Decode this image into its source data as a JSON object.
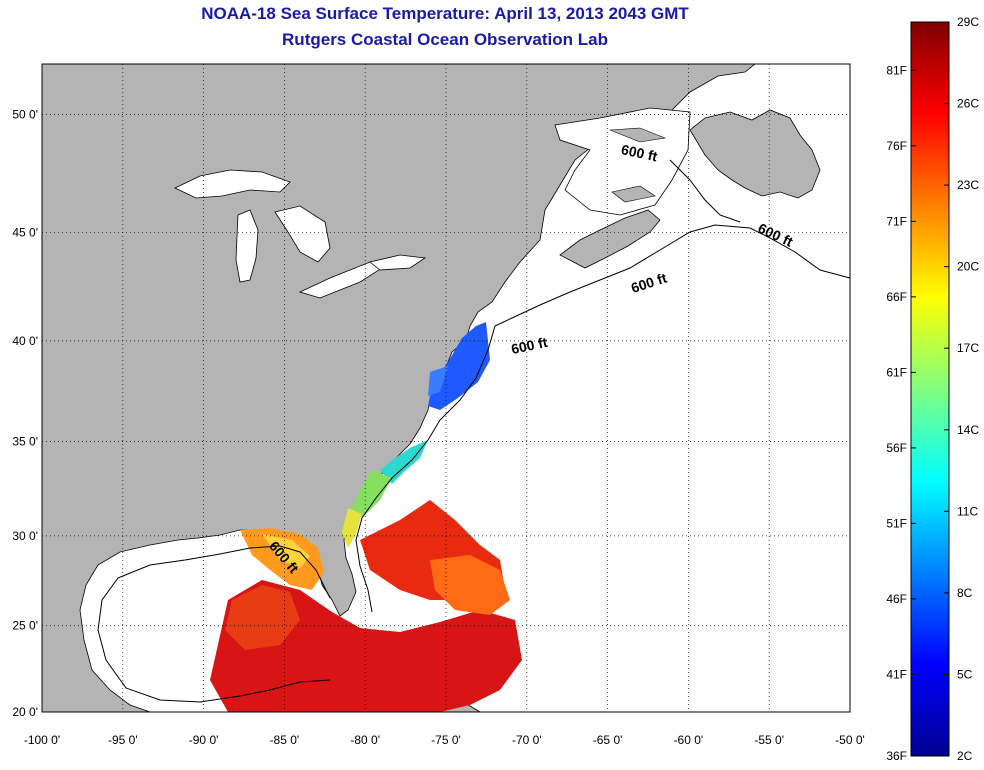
{
  "title": {
    "line1": "NOAA-18 Sea Surface Temperature:  April 13, 2013 2043 GMT",
    "line2": "Rutgers Coastal Ocean Observation Lab"
  },
  "colors": {
    "land": "#b4b4b4",
    "water": "#ffffff",
    "frame": "#000000",
    "grid": "#000000"
  },
  "map": {
    "lon_range": [
      -100,
      -50
    ],
    "lat_range": [
      20,
      52
    ],
    "lon_ticks": [
      "-100 0'",
      "-95 0'",
      "-90 0'",
      "-85 0'",
      "-80 0'",
      "-75 0'",
      "-70 0'",
      "-65 0'",
      "-60 0'",
      "-55 0'",
      "-50 0'"
    ],
    "lat_ticks": [
      "20 0'",
      "25 0'",
      "30 0'",
      "35 0'",
      "40 0'",
      "45 0'",
      "50 0'"
    ],
    "contour_label": "600 ft",
    "contour_labels": [
      "600 ft",
      "600 ft",
      "600 ft",
      "600 ft",
      "600 ft"
    ]
  },
  "colorbar": {
    "celsius": [
      "29C",
      "26C",
      "23C",
      "20C",
      "17C",
      "14C",
      "11C",
      "8C",
      "5C",
      "2C"
    ],
    "fahrenheit": [
      "81F",
      "76F",
      "71F",
      "66F",
      "61F",
      "56F",
      "51F",
      "46F",
      "41F",
      "36F"
    ]
  }
}
